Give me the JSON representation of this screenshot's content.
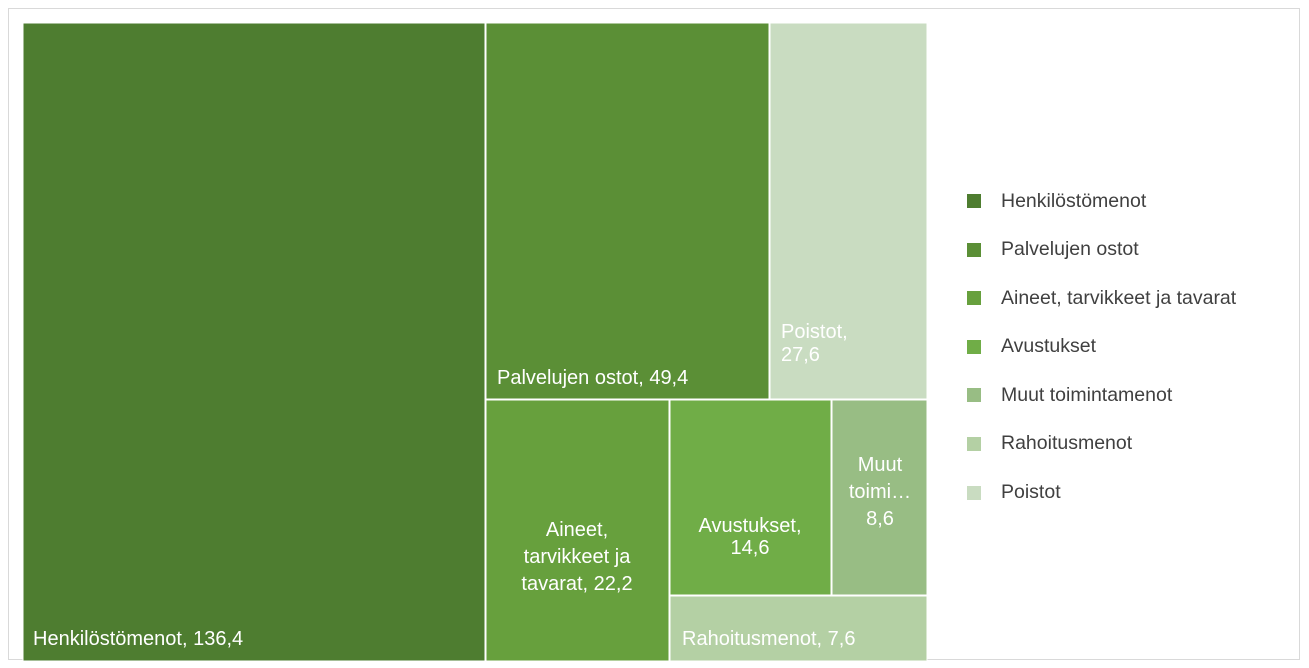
{
  "chart_data": {
    "type": "treemap",
    "title": "",
    "items": [
      {
        "name": "Henkilöstömenot",
        "value": 136.4,
        "label": "Henkilöstömenot,  136,4",
        "color": "#4e7d30"
      },
      {
        "name": "Palvelujen ostot",
        "value": 49.4,
        "label": "Palvelujen ostot,  49,4",
        "color": "#5b8f36"
      },
      {
        "name": "Aineet, tarvikkeet ja tavarat",
        "value": 22.2,
        "label": "Aineet, tarvikkeet ja tavarat,  22,2",
        "color": "#67a03d"
      },
      {
        "name": "Avustukset",
        "value": 14.6,
        "label": "Avustukset,  14,6",
        "color": "#70ad47"
      },
      {
        "name": "Muut toimintamenot",
        "value": 8.6,
        "label": "Muut toimi…  8,6",
        "color": "#98bd84"
      },
      {
        "name": "Rahoitusmenot",
        "value": 7.6,
        "label": "Rahoitusmenot,  7,6",
        "color": "#b4d0a4"
      },
      {
        "name": "Poistot",
        "value": 27.6,
        "label": "Poistot,  27,6",
        "color": "#c9dcc1"
      }
    ],
    "legend_position": "right"
  },
  "legend": [
    {
      "label": "Henkilöstömenot",
      "color": "#4e7d30"
    },
    {
      "label": "Palvelujen ostot",
      "color": "#5b8f36"
    },
    {
      "label": "Aineet, tarvikkeet ja tavarat",
      "color": "#67a03d"
    },
    {
      "label": "Avustukset",
      "color": "#70ad47"
    },
    {
      "label": "Muut toimintamenot",
      "color": "#98bd84"
    },
    {
      "label": "Rahoitusmenot",
      "color": "#b4d0a4"
    },
    {
      "label": "Poistot",
      "color": "#c9dcc1"
    }
  ],
  "labels": {
    "henkilosto": [
      "Henkilöstömenot,  136,4"
    ],
    "palvelut": [
      "Palvelujen ostot,  49,4"
    ],
    "poistot": [
      "Poistot,",
      "27,6"
    ],
    "aineet": [
      "Aineet,",
      "tarvikkeet ja",
      "tavarat,  22,2"
    ],
    "avustukset": [
      "Avustukset,",
      "14,6"
    ],
    "muut": [
      "Muut",
      "toimi…",
      "8,6"
    ],
    "rahoitus": [
      "Rahoitusmenot,  7,6"
    ]
  }
}
